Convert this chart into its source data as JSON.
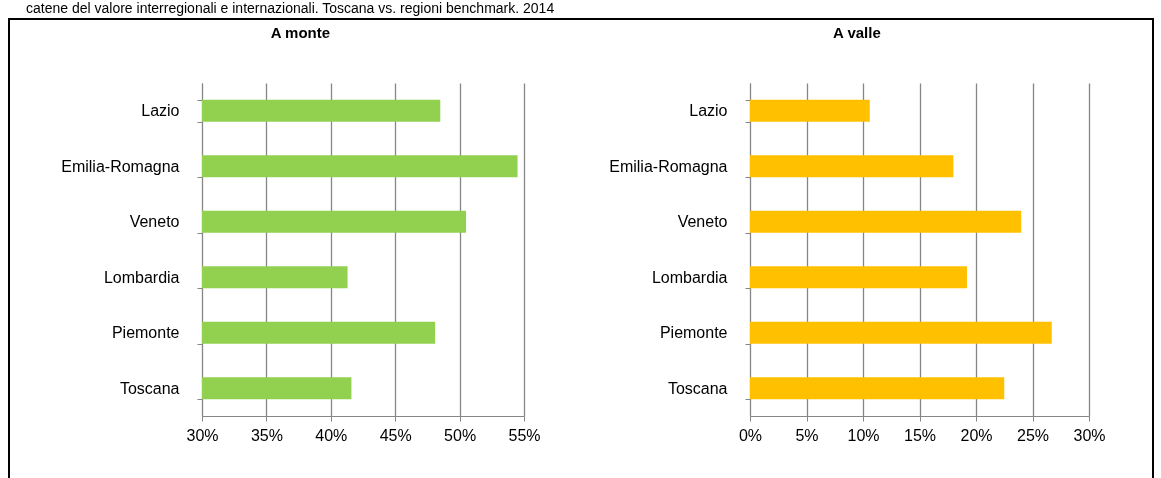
{
  "chart_data": [
    {
      "type": "bar",
      "orientation": "horizontal",
      "title": "A monte",
      "annotations": [
        "catene del valore interregionali e internazionali. Toscana vs. regioni benchmark. 2014"
      ],
      "categories": [
        "Lazio",
        "Emilia-Romagna",
        "Veneto",
        "Lombardia",
        "Piemonte",
        "Toscana"
      ],
      "values": [
        48.5,
        54.5,
        50.5,
        41.3,
        48.1,
        41.6
      ],
      "color": "#92d050",
      "xlim": [
        30,
        55
      ],
      "xticks": [
        {
          "value": 30,
          "label": "30%"
        },
        {
          "value": 35,
          "label": "35%"
        },
        {
          "value": 40,
          "label": "40%"
        },
        {
          "value": 45,
          "label": "45%"
        },
        {
          "value": 50,
          "label": "50%"
        },
        {
          "value": 55,
          "label": "55%"
        }
      ],
      "grid": "x"
    },
    {
      "type": "bar",
      "orientation": "horizontal",
      "title": "A valle",
      "categories": [
        "Lazio",
        "Emilia-Romagna",
        "Veneto",
        "Lombardia",
        "Piemonte",
        "Toscana"
      ],
      "values": [
        10.6,
        18.0,
        24.0,
        19.2,
        26.7,
        22.5
      ],
      "color": "#ffc000",
      "xlim": [
        0,
        30
      ],
      "xticks": [
        {
          "value": 0,
          "label": "0%"
        },
        {
          "value": 5,
          "label": "5%"
        },
        {
          "value": 10,
          "label": "10%"
        },
        {
          "value": 15,
          "label": "15%"
        },
        {
          "value": 20,
          "label": "20%"
        },
        {
          "value": 25,
          "label": "25%"
        },
        {
          "value": 30,
          "label": "30%"
        }
      ],
      "grid": "x"
    }
  ]
}
